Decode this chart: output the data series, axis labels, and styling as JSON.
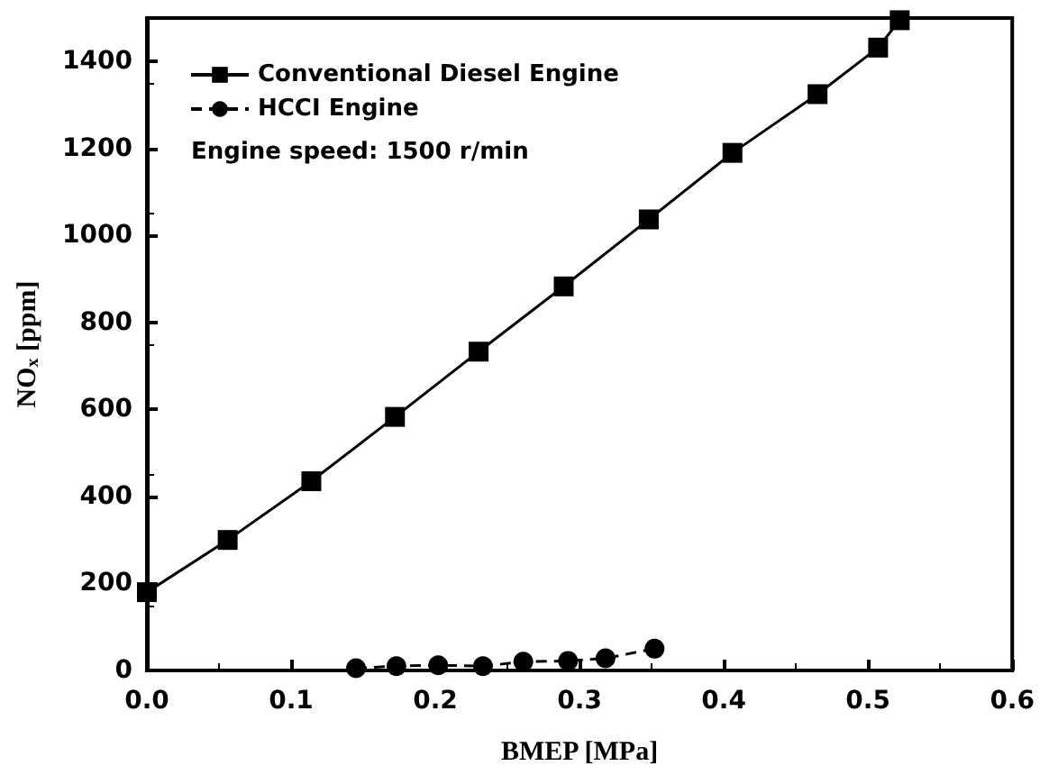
{
  "chart_data": {
    "type": "line",
    "xlabel": "BMEP [MPa]",
    "ylabel": "NO$_{x}$ [ppm]",
    "xlim": [
      0,
      0.6
    ],
    "xticks": [
      {
        "value": 0,
        "label": "0.0"
      },
      {
        "value": 0.1,
        "label": "0.1"
      },
      {
        "value": 0.2,
        "label": "0.2"
      },
      {
        "value": 0.3,
        "label": "0.3"
      },
      {
        "value": 0.4,
        "label": "0.4"
      },
      {
        "value": 0.5,
        "label": "0.5"
      },
      {
        "value": 0.6,
        "label": "0.6"
      }
    ],
    "ylim": [
      0,
      1500
    ],
    "yticks": [
      0,
      200,
      400,
      600,
      800,
      1000,
      1200,
      1400
    ],
    "grid": false,
    "legend": "top left",
    "annotations": [
      "Engine speed: 1500 r/min"
    ],
    "series": [
      {
        "name": "Conventional Diesel Engine",
        "color": "#000000",
        "marker": "square",
        "line_style": "solid",
        "x": [
          0,
          0.056,
          0.114,
          0.172,
          0.23,
          0.289,
          0.348,
          0.406,
          0.465,
          0.507,
          0.522
        ],
        "values": [
          180,
          300,
          435,
          583,
          733,
          883,
          1037,
          1190,
          1325,
          1432,
          1495
        ]
      },
      {
        "name": "HCCI Engine",
        "color": "#000000",
        "marker": "circle",
        "line_style": "dashed",
        "x": [
          0.145,
          0.173,
          0.202,
          0.233,
          0.261,
          0.292,
          0.318,
          0.352
        ],
        "values": [
          5,
          10,
          12,
          10,
          20,
          22,
          28,
          50
        ]
      }
    ]
  }
}
